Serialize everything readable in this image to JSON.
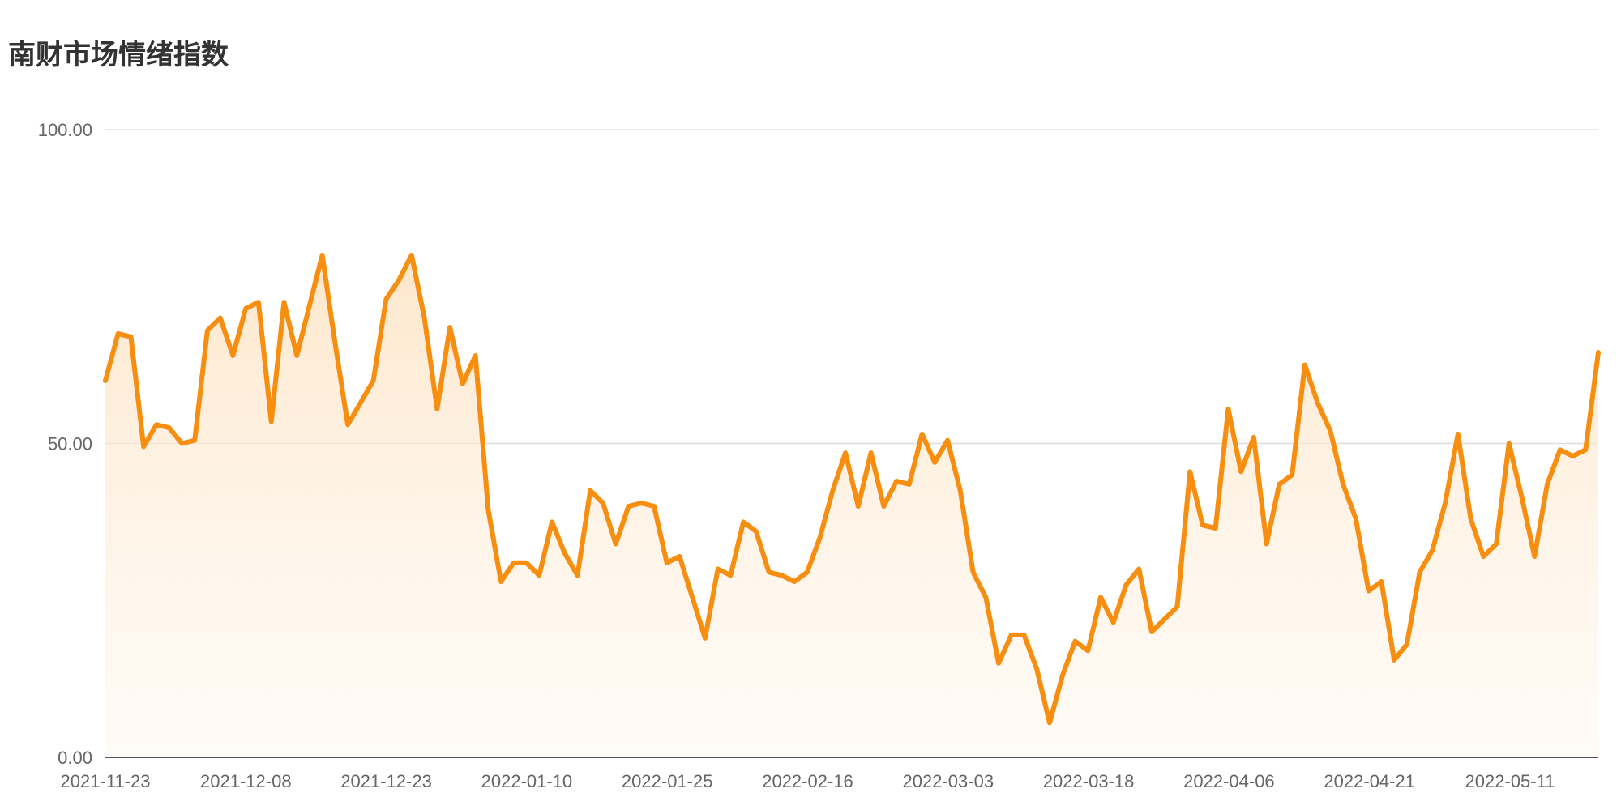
{
  "title": "南财市场情绪指数",
  "chart_data": {
    "type": "area",
    "title": "南财市场情绪指数",
    "xlabel": "",
    "ylabel": "",
    "ylim": [
      0,
      100
    ],
    "y_ticks": [
      "0.00",
      "50.00",
      "100.00"
    ],
    "x_tick_labels": [
      "2021-11-23",
      "2021-12-08",
      "2021-12-23",
      "2022-01-10",
      "2022-01-25",
      "2022-02-16",
      "2022-03-03",
      "2022-03-18",
      "2022-04-06",
      "2022-04-21",
      "2022-05-11"
    ],
    "grid": true,
    "line_color": "#f78e10",
    "fill_color": "#fde3c3",
    "series": [
      {
        "values": [
          60,
          67.5,
          67,
          49.5,
          53,
          52.5,
          50,
          50.5,
          68,
          70,
          64,
          71.5,
          72.5,
          53.5,
          72.5,
          64,
          72,
          80,
          66,
          53,
          56.5,
          60,
          73,
          76,
          80,
          70,
          55.5,
          68.5,
          59.5,
          64,
          39.5,
          28,
          31,
          31,
          29,
          37.5,
          32.5,
          29,
          42.5,
          40.5,
          34,
          40,
          40.5,
          40,
          31,
          32,
          25.5,
          19,
          30,
          29,
          37.5,
          36,
          29.5,
          29,
          28,
          29.5,
          35,
          42.5,
          48.5,
          40,
          48.5,
          40,
          44,
          43.5,
          51.5,
          47,
          50.5,
          42.5,
          29.5,
          25.5,
          15,
          19.5,
          19.5,
          14,
          5.5,
          13,
          18.5,
          17,
          25.5,
          21.5,
          27.5,
          30,
          20,
          22,
          24,
          45.5,
          37,
          36.5,
          55.5,
          45.5,
          51,
          34,
          43.5,
          45,
          62.5,
          56.5,
          52,
          43.5,
          38,
          26.5,
          28,
          15.5,
          18,
          29.5,
          33,
          40.5,
          51.5,
          38,
          32,
          34,
          50,
          41.5,
          32,
          43.5,
          49,
          48,
          49,
          64.5
        ]
      }
    ]
  }
}
